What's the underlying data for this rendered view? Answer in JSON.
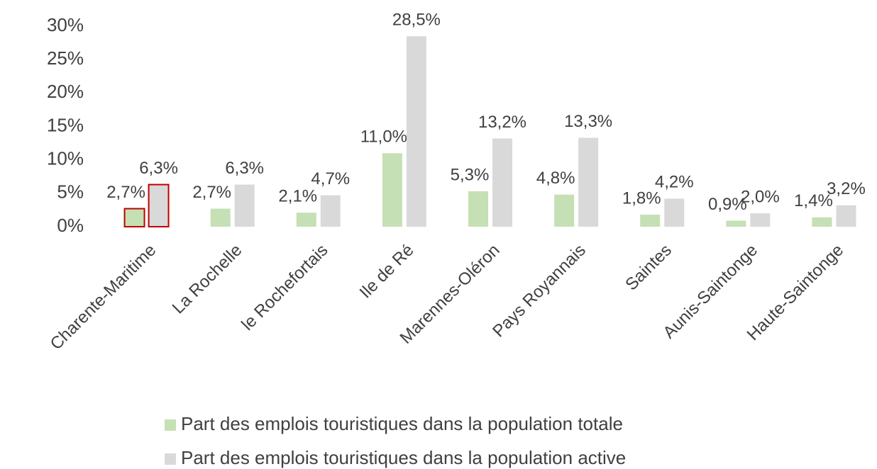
{
  "chart_data": {
    "type": "bar",
    "categories": [
      "Charente-Maritime",
      "La Rochelle",
      "le Rochefortais",
      "Ile de Ré",
      "Marennes-Oléron",
      "Pays Royannais",
      "Saintes",
      "Aunis-Saintonge",
      "Haute-Saintonge"
    ],
    "series": [
      {
        "name": "Part des emplois touristiques dans la population totale",
        "color": "#c5e0b4",
        "values": [
          2.7,
          2.7,
          2.1,
          11.0,
          5.3,
          4.8,
          1.8,
          0.9,
          1.4
        ],
        "value_labels": [
          "2,7%",
          "2,7%",
          "2,1%",
          "11,0%",
          "5,3%",
          "4,8%",
          "1,8%",
          "0,9%",
          "1,4%"
        ]
      },
      {
        "name": "Part des emplois touristiques dans la population active",
        "color": "#d9d9d9",
        "values": [
          6.3,
          6.3,
          4.7,
          28.5,
          13.2,
          13.3,
          4.2,
          2.0,
          3.2
        ],
        "value_labels": [
          "6,3%",
          "6,3%",
          "4,7%",
          "28,5%",
          "13,2%",
          "13,3%",
          "4,2%",
          "2,0%",
          "3,2%"
        ]
      }
    ],
    "outline": {
      "category": "Charente-Maritime",
      "color": "#c00000"
    },
    "ylim": [
      0,
      30
    ],
    "yticks": [
      {
        "value": 0,
        "label": "0%"
      },
      {
        "value": 5,
        "label": "5%"
      },
      {
        "value": 10,
        "label": "10%"
      },
      {
        "value": 15,
        "label": "15%"
      },
      {
        "value": 20,
        "label": "20%"
      },
      {
        "value": 25,
        "label": "25%"
      },
      {
        "value": 30,
        "label": "30%"
      }
    ],
    "grid": false,
    "legend": "bottom"
  }
}
